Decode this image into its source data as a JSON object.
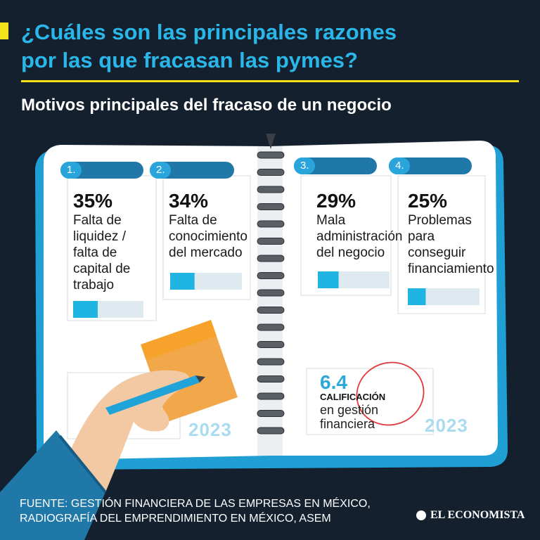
{
  "header": {
    "title_line1": "¿Cuáles son las principales razones",
    "title_line2": "por las que fracasan las pymes?",
    "subtitle": "Motivos principales del fracaso de un negocio"
  },
  "chart_data": {
    "type": "bar",
    "categories": [
      "1.",
      "2.",
      "3.",
      "4."
    ],
    "values": [
      35,
      34,
      29,
      25
    ],
    "value_labels": [
      "35%",
      "34%",
      "29%",
      "25%"
    ],
    "labels": [
      [
        "Falta de",
        "liquidez /",
        "falta de",
        "capital de",
        "trabajo"
      ],
      [
        "Falta de",
        "conocimiento",
        "del mercado"
      ],
      [
        "Mala",
        "administración",
        "del negocio"
      ],
      [
        "Problemas",
        "para",
        "conseguir",
        "financiamiento"
      ]
    ],
    "ylim": [
      0,
      100
    ]
  },
  "score": {
    "value": "6.4",
    "label1": "CALIFICACIÓN",
    "label2": "en gestión financiera"
  },
  "years": [
    "2023",
    "2023"
  ],
  "footer": {
    "source_line1": "FUENTE: GESTIÓN FINANCIERA DE LAS EMPRESAS EN MÉXICO,",
    "source_line2": "RADIOGRAFÍA DEL EMPRENDIMIENTO EN MÉXICO, ASEM",
    "brand": "EL ECONOMISTA"
  },
  "colors": {
    "background": "#15202e",
    "accent_blue": "#29b7ea",
    "accent_yellow": "#f4e21b",
    "bar_fill": "#1fb4e2",
    "bar_track": "#dfeaf0",
    "tab_blue": "#1f78a8"
  },
  "icons": [
    "pencil-icon",
    "hand-icon",
    "sticky-note-icon",
    "spiral-binding-icon"
  ]
}
